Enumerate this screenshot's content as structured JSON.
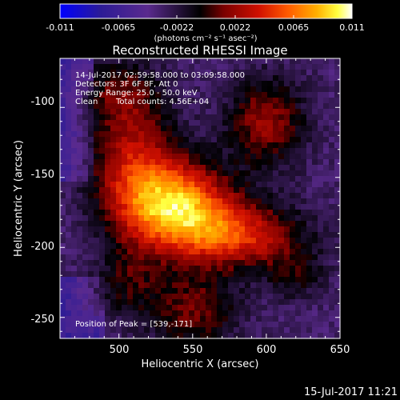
{
  "chart_data": {
    "type": "heatmap",
    "title": "Reconstructed RHESSI Image",
    "xlabel": "Heliocentric X (arcsec)",
    "ylabel": "Heliocentric Y (arcsec)",
    "xlim": [
      460,
      650
    ],
    "ylim": [
      -265,
      -65
    ],
    "x_ticks": [
      500,
      550,
      600,
      650
    ],
    "y_ticks": [
      -100,
      -150,
      -200,
      -250
    ],
    "colorbar": {
      "min": -0.011,
      "max": 0.011,
      "ticks": [
        "-0.011",
        "-0.0065",
        "-0.0022",
        "0.0022",
        "0.0065",
        "0.011"
      ],
      "units": "(photons cm⁻² s⁻¹ asec⁻²)",
      "colormap": [
        "#0000ff",
        "#2c1b96",
        "#5a2a8e",
        "#000000",
        "#7a0000",
        "#d01000",
        "#ff5a00",
        "#ffb000",
        "#ffff40",
        "#ffffff"
      ]
    },
    "annotations": {
      "time_range": "14-Jul-2017 02:59:58.000 to 03:09:58.000",
      "detectors": "Detectors: 3F 6F 8F, Att 0",
      "energy": "Energy Range: 25.0 - 50.0 keV",
      "method": "Clean",
      "counts": "Total counts: 4.56E+04",
      "peak": "Position of Peak = [539,-171]"
    },
    "peak": {
      "x": 539,
      "y": -171
    },
    "sources": [
      {
        "x": 539,
        "y": -171,
        "amp": 0.0115,
        "sx": 26,
        "sy": 22
      },
      {
        "x": 582,
        "y": -192,
        "amp": 0.0072,
        "sx": 30,
        "sy": 16
      },
      {
        "x": 510,
        "y": -140,
        "amp": 0.006,
        "sx": 20,
        "sy": 30
      },
      {
        "x": 600,
        "y": -110,
        "amp": 0.0055,
        "sx": 18,
        "sy": 22
      },
      {
        "x": 500,
        "y": -90,
        "amp": 0.0035,
        "sx": 20,
        "sy": 18
      },
      {
        "x": 550,
        "y": -245,
        "amp": 0.0045,
        "sx": 22,
        "sy": 20
      },
      {
        "x": 505,
        "y": -225,
        "amp": 0.003,
        "sx": 15,
        "sy": 18
      },
      {
        "x": 620,
        "y": -220,
        "amp": 0.0028,
        "sx": 14,
        "sy": 12
      }
    ],
    "background": -0.0034
  },
  "footer": {
    "timestamp": "15-Jul-2017 11:21"
  },
  "colors": {
    "text": "#ffffff",
    "background": "#000000"
  }
}
